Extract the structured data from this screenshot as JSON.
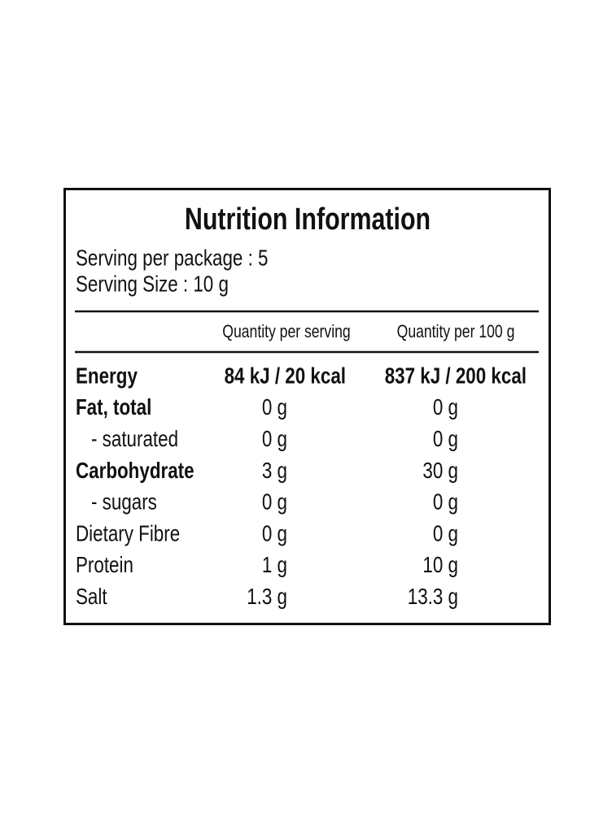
{
  "title": "Nutrition Information",
  "serving": [
    "Serving per package : 5",
    "Serving Size : 10 g"
  ],
  "table": {
    "header": [
      "Quantity per serving",
      "Quantity per 100 g"
    ],
    "rows": [
      [
        "Energy",
        "84 kJ / 20 kcal",
        "837 kJ / 200 kcal"
      ],
      [
        "Fat, total",
        "0 g",
        "0 g"
      ],
      [
        "- saturated",
        "0 g",
        "0 g"
      ],
      [
        "Carbohydrate",
        "3 g",
        "30 g"
      ],
      [
        "- sugars",
        "0 g",
        "0 g"
      ],
      [
        "Dietary Fibre",
        "0 g",
        "0 g"
      ],
      [
        "Protein",
        "1 g",
        "10 g"
      ],
      [
        "Salt",
        "1.3 g",
        "13.3 g"
      ]
    ]
  }
}
